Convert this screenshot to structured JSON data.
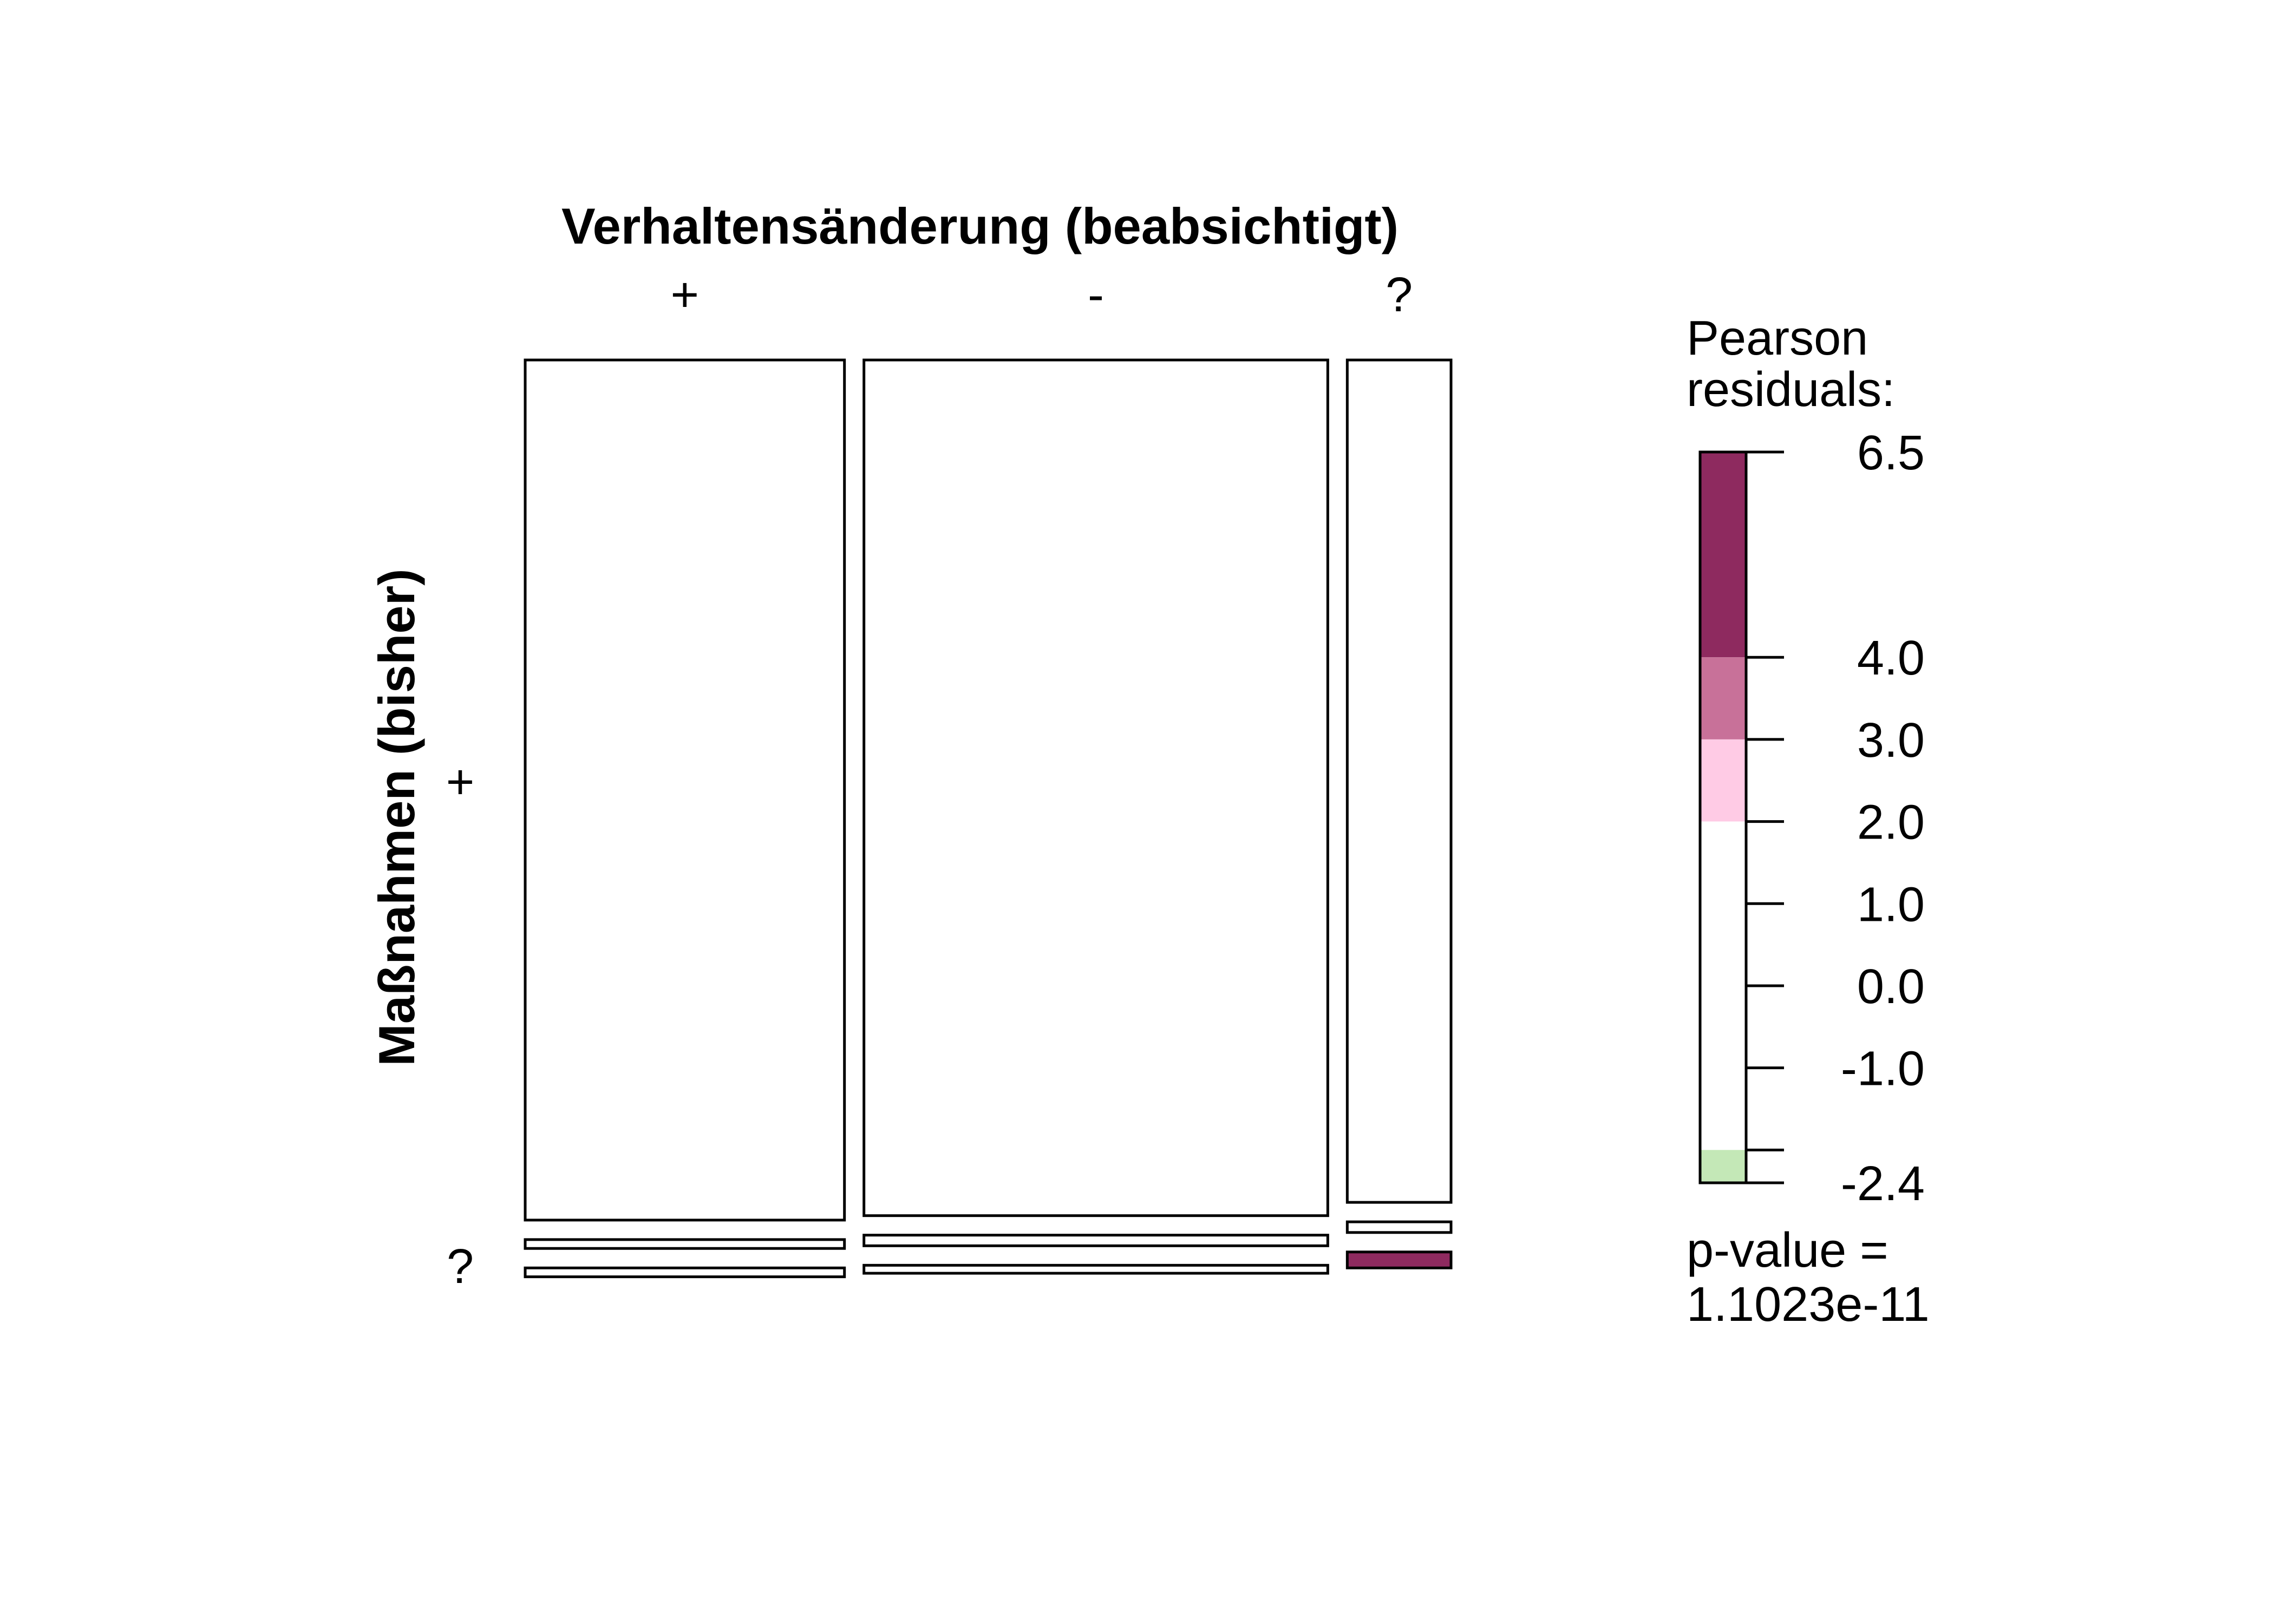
{
  "chart_data": {
    "type": "mosaic",
    "x_variable": {
      "label": "Verhaltensänderung (beabsichtigt)",
      "categories": [
        "+",
        "-",
        "?"
      ]
    },
    "y_variable": {
      "label": "Maßnahmen (bisher)",
      "categories": [
        "+",
        "",
        "?"
      ],
      "category_labels": [
        "+",
        "?"
      ]
    },
    "column_widths": [
      0.36,
      0.523,
      0.117
    ],
    "cells": [
      {
        "x": "+",
        "heights": [
          0.97,
          0.01,
          0.01
        ],
        "residuals": [
          0.0,
          -2.0,
          0.5
        ]
      },
      {
        "x": "-",
        "heights": [
          0.965,
          0.012,
          0.009
        ],
        "residuals": [
          0.0,
          0.0,
          0.3
        ]
      },
      {
        "x": "?",
        "heights": [
          0.95,
          0.012,
          0.018
        ],
        "residuals": [
          -1.0,
          0.2,
          6.5
        ]
      }
    ],
    "legend": {
      "title_lines": [
        "Pearson",
        "residuals:"
      ],
      "ticks": [
        "6.5",
        "4.0",
        "3.0",
        "2.0",
        "1.0",
        "0.0",
        "-1.0",
        "-2.4"
      ],
      "tick_values": [
        6.5,
        4.0,
        3.0,
        2.0,
        1.0,
        0.0,
        -1.0,
        -2.4
      ],
      "range": [
        -2.4,
        6.5
      ],
      "bands": [
        {
          "from": 4.0,
          "to": 6.5,
          "color": "#8e2a5f"
        },
        {
          "from": 3.0,
          "to": 4.0,
          "color": "#c87199"
        },
        {
          "from": 2.0,
          "to": 3.0,
          "color": "#ffcbe5"
        },
        {
          "from": -2.0,
          "to": 2.0,
          "color": "#ffffff"
        },
        {
          "from": -2.4,
          "to": -2.0,
          "color": "#c4e8b7"
        }
      ],
      "pvalue_lines": [
        "p-value =",
        "1.1023e-11"
      ]
    }
  }
}
